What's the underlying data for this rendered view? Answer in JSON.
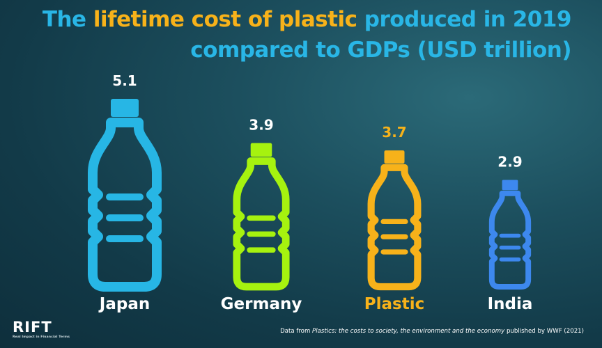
{
  "title": {
    "part1": "The ",
    "part2": "lifetime cost of plastic",
    "part3": " produced in 2019",
    "line2": "compared to GDPs (USD trillion)"
  },
  "colors": {
    "background": "#163f4d",
    "title_main": "#29b6e6",
    "title_highlight": "#f7b21a",
    "label_default": "#ffffff",
    "label_highlight": "#f7b21a"
  },
  "chart_data": {
    "type": "bar",
    "mark": "bottle pictogram",
    "categories": [
      "Japan",
      "Germany",
      "Plastic",
      "India"
    ],
    "values": [
      5.1,
      3.9,
      3.7,
      2.9
    ],
    "value_labels": [
      "5.1",
      "3.9",
      "3.7",
      "2.9"
    ],
    "colors": [
      "#27b6e5",
      "#a6f20f",
      "#f7b21a",
      "#3d88ee"
    ],
    "highlight": "Plastic",
    "title": "The lifetime cost of plastic produced in 2019 compared to GDPs (USD trillion)",
    "xlabel": "",
    "ylabel": "",
    "unit": "USD trillion",
    "grid": false
  },
  "logo": {
    "mark": "RIFT",
    "tagline": "Real Impact in Financial Terms"
  },
  "source": {
    "prefix": "Data from ",
    "publication": "Plastics: the costs to society, the environment and the economy",
    "suffix": " published by WWF (2021)"
  }
}
